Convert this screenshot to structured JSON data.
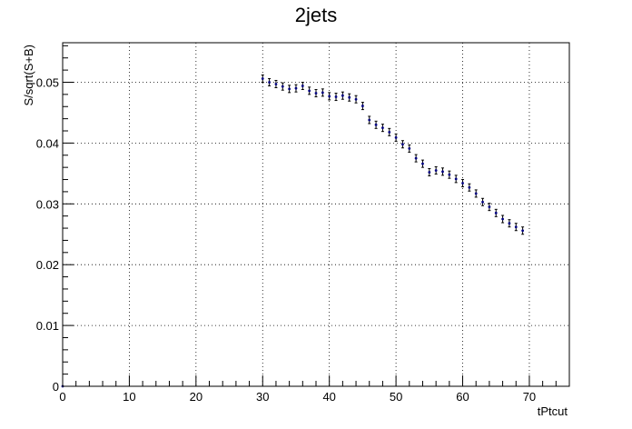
{
  "chart_data": {
    "type": "scatter",
    "title": "2jets",
    "xlabel": "tPtcut",
    "ylabel": "S/sqrt(S+B)",
    "xlim": [
      0,
      76
    ],
    "ylim": [
      0,
      0.0565
    ],
    "x_ticks": [
      0,
      10,
      20,
      30,
      40,
      50,
      60,
      70
    ],
    "x_tick_labels": [
      "0",
      "10",
      "20",
      "30",
      "40",
      "50",
      "60",
      "70"
    ],
    "y_ticks": [
      0,
      0.01,
      0.02,
      0.03,
      0.04,
      0.05
    ],
    "y_tick_labels": [
      "0",
      "0.01",
      "0.02",
      "0.03",
      "0.04",
      "0.05"
    ],
    "grid": true,
    "marker_color": "#000080",
    "series": [
      {
        "x": [
          0,
          30,
          31,
          32,
          33,
          34,
          35,
          36,
          37,
          38,
          39,
          40,
          41,
          42,
          43,
          44,
          45,
          46,
          47,
          48,
          49,
          50,
          51,
          52,
          53,
          54,
          55,
          56,
          57,
          58,
          59,
          60,
          61,
          62,
          63,
          64,
          65,
          66,
          67,
          68,
          69
        ],
        "y": [
          0,
          0.0506,
          0.05,
          0.0497,
          0.0493,
          0.0489,
          0.049,
          0.0494,
          0.0486,
          0.0482,
          0.0483,
          0.0477,
          0.0476,
          0.0478,
          0.0475,
          0.0472,
          0.0461,
          0.0438,
          0.043,
          0.0425,
          0.0418,
          0.0409,
          0.0398,
          0.0391,
          0.0375,
          0.0366,
          0.0352,
          0.0355,
          0.0353,
          0.0348,
          0.0341,
          0.0334,
          0.0327,
          0.0317,
          0.0303,
          0.0295,
          0.0285,
          0.0275,
          0.0268,
          0.0262,
          0.0256
        ],
        "err": [
          0,
          0.0006,
          0.0006,
          0.0006,
          0.0006,
          0.0006,
          0.0006,
          0.0006,
          0.0006,
          0.0006,
          0.0006,
          0.0006,
          0.0006,
          0.0006,
          0.0006,
          0.0006,
          0.0006,
          0.0006,
          0.0006,
          0.0006,
          0.0006,
          0.0006,
          0.0006,
          0.0006,
          0.0006,
          0.0006,
          0.0006,
          0.0006,
          0.0006,
          0.0006,
          0.0006,
          0.0006,
          0.0006,
          0.0006,
          0.0006,
          0.0006,
          0.0006,
          0.0006,
          0.0006,
          0.0006,
          0.0006
        ]
      }
    ]
  }
}
